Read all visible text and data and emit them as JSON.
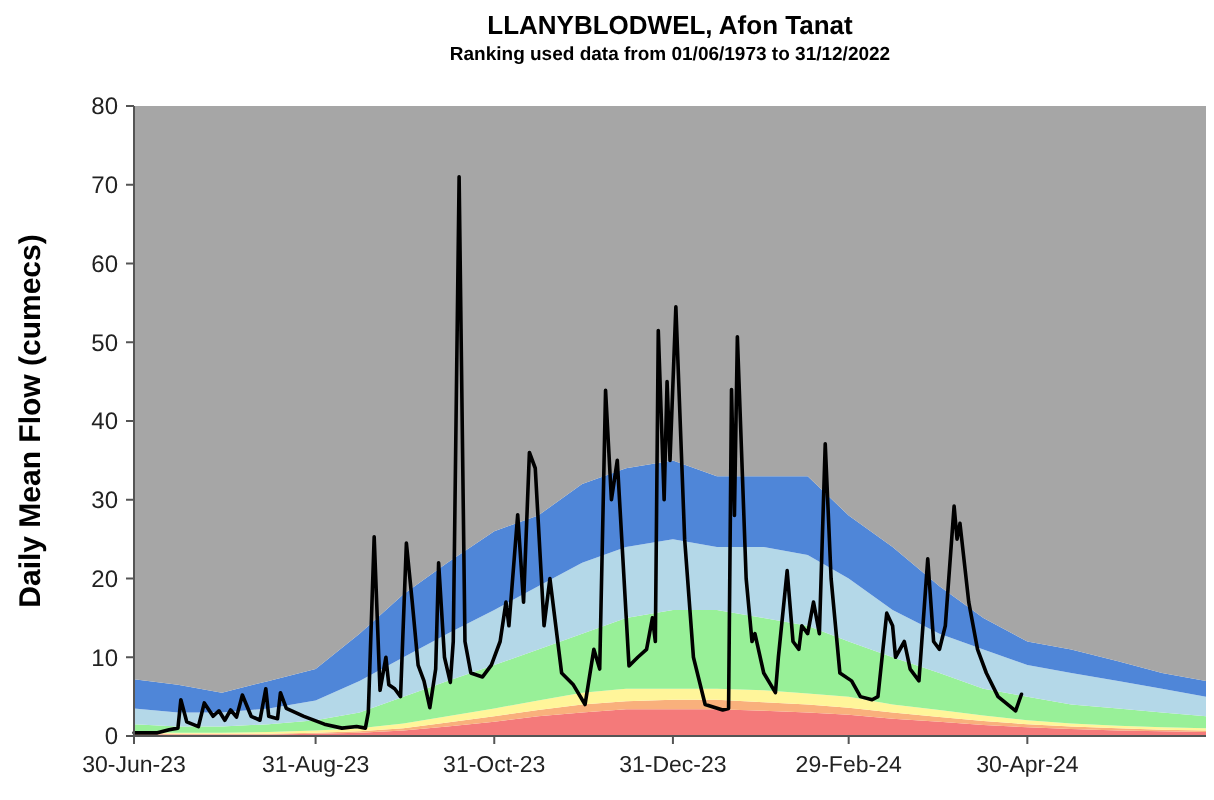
{
  "chart_data": {
    "type": "area",
    "title": "LLANYBLODWEL, Afon Tanat",
    "subtitle": "Ranking used data from 01/06/1973 to 31/12/2022",
    "ylabel": "Daily Mean Flow (cumecs)",
    "stacked": true,
    "grid": false,
    "xlim": [
      "2023-06-30",
      "2024-06-30"
    ],
    "xticks": [
      {
        "value": "2023-06-30",
        "label": "30-Jun-23"
      },
      {
        "value": "2023-08-31",
        "label": "31-Aug-23"
      },
      {
        "value": "2023-10-31",
        "label": "31-Oct-23"
      },
      {
        "value": "2023-12-31",
        "label": "31-Dec-23"
      },
      {
        "value": "2024-02-29",
        "label": "29-Feb-24"
      },
      {
        "value": "2024-04-30",
        "label": "30-Apr-24"
      }
    ],
    "ylim": [
      0,
      80
    ],
    "yticks": [
      0,
      10,
      20,
      30,
      40,
      50,
      60,
      70,
      80
    ],
    "series": [
      {
        "color": "#f47a7a",
        "x": [
          "2023-06-30",
          "2023-07-15",
          "2023-07-30",
          "2023-08-15",
          "2023-08-31",
          "2023-09-15",
          "2023-09-30",
          "2023-10-15",
          "2023-10-31",
          "2023-11-15",
          "2023-11-30",
          "2023-12-15",
          "2023-12-31",
          "2024-01-15",
          "2024-01-31",
          "2024-02-15",
          "2024-02-29",
          "2024-03-15",
          "2024-03-31",
          "2024-04-15",
          "2024-04-30",
          "2024-05-15",
          "2024-05-31",
          "2024-06-15",
          "2024-06-30"
        ],
        "values": [
          0.2,
          0.2,
          0.2,
          0.2,
          0.3,
          0.4,
          0.7,
          1.2,
          1.8,
          2.5,
          3,
          3.4,
          3.4,
          3.4,
          3.2,
          3,
          2.7,
          2.2,
          1.8,
          1.4,
          1.1,
          0.9,
          0.7,
          0.6,
          0.5
        ]
      },
      {
        "color": "#f9b07c",
        "x": [
          "2023-06-30",
          "2023-07-15",
          "2023-07-30",
          "2023-08-15",
          "2023-08-31",
          "2023-09-15",
          "2023-09-30",
          "2023-10-15",
          "2023-10-31",
          "2023-11-15",
          "2023-11-30",
          "2023-12-15",
          "2023-12-31",
          "2024-01-15",
          "2024-01-31",
          "2024-02-15",
          "2024-02-29",
          "2024-03-15",
          "2024-03-31",
          "2024-04-15",
          "2024-04-30",
          "2024-05-15",
          "2024-05-31",
          "2024-06-15",
          "2024-06-30"
        ],
        "values": [
          0.1,
          0.1,
          0.1,
          0.1,
          0.1,
          0.2,
          0.3,
          0.5,
          0.7,
          0.8,
          1,
          1,
          1.2,
          1.2,
          1.1,
          1,
          0.9,
          0.8,
          0.6,
          0.5,
          0.4,
          0.3,
          0.3,
          0.2,
          0.2
        ]
      },
      {
        "color": "#fff59a",
        "x": [
          "2023-06-30",
          "2023-07-15",
          "2023-07-30",
          "2023-08-15",
          "2023-08-31",
          "2023-09-15",
          "2023-09-30",
          "2023-10-15",
          "2023-10-31",
          "2023-11-15",
          "2023-11-30",
          "2023-12-15",
          "2023-12-31",
          "2024-01-15",
          "2024-01-31",
          "2024-02-15",
          "2024-02-29",
          "2024-03-15",
          "2024-03-31",
          "2024-04-15",
          "2024-04-30",
          "2024-05-15",
          "2024-05-31",
          "2024-06-15",
          "2024-06-30"
        ],
        "values": [
          0.2,
          0.1,
          0.1,
          0.2,
          0.3,
          0.4,
          0.6,
          0.8,
          1,
          1.2,
          1.5,
          1.6,
          1.4,
          1.4,
          1.5,
          1.4,
          1.4,
          1,
          0.9,
          0.7,
          0.5,
          0.4,
          0.3,
          0.3,
          0.3
        ]
      },
      {
        "color": "#98f098",
        "x": [
          "2023-06-30",
          "2023-07-15",
          "2023-07-30",
          "2023-08-15",
          "2023-08-31",
          "2023-09-15",
          "2023-09-30",
          "2023-10-15",
          "2023-10-31",
          "2023-11-15",
          "2023-11-30",
          "2023-12-15",
          "2023-12-31",
          "2024-01-15",
          "2024-01-31",
          "2024-02-15",
          "2024-02-29",
          "2024-03-15",
          "2024-03-31",
          "2024-04-15",
          "2024-04-30",
          "2024-05-15",
          "2024-05-31",
          "2024-06-15",
          "2024-06-30"
        ],
        "values": [
          1,
          0.8,
          0.8,
          1,
          1.3,
          2,
          3.4,
          4.5,
          5.5,
          6.5,
          7.5,
          9,
          10,
          10,
          9.2,
          8.6,
          7,
          6,
          4.7,
          3.4,
          3,
          2.4,
          2.2,
          1.9,
          1.5
        ]
      },
      {
        "color": "#b4d8e8",
        "x": [
          "2023-06-30",
          "2023-07-15",
          "2023-07-30",
          "2023-08-15",
          "2023-08-31",
          "2023-09-15",
          "2023-09-30",
          "2023-10-15",
          "2023-10-31",
          "2023-11-15",
          "2023-11-30",
          "2023-12-15",
          "2023-12-31",
          "2024-01-15",
          "2024-01-31",
          "2024-02-15",
          "2024-02-29",
          "2024-03-15",
          "2024-03-31",
          "2024-04-15",
          "2024-04-30",
          "2024-05-15",
          "2024-05-31",
          "2024-06-15",
          "2024-06-30"
        ],
        "values": [
          2,
          1.8,
          1.8,
          2,
          2.5,
          4,
          5,
          6,
          7,
          8,
          9,
          9,
          9,
          8,
          9,
          9,
          8,
          6,
          5,
          5,
          4,
          4,
          3.5,
          3,
          2.5
        ]
      },
      {
        "color": "#4f86d8",
        "x": [
          "2023-06-30",
          "2023-07-15",
          "2023-07-30",
          "2023-08-15",
          "2023-08-31",
          "2023-09-15",
          "2023-09-30",
          "2023-10-15",
          "2023-10-31",
          "2023-11-15",
          "2023-11-30",
          "2023-12-15",
          "2023-12-31",
          "2024-01-15",
          "2024-01-31",
          "2024-02-15",
          "2024-02-29",
          "2024-03-15",
          "2024-03-31",
          "2024-04-15",
          "2024-04-30",
          "2024-05-15",
          "2024-05-31",
          "2024-06-15",
          "2024-06-30"
        ],
        "values": [
          3.7,
          3.5,
          2.5,
          3.5,
          4,
          6,
          8,
          9,
          10,
          9,
          10,
          10,
          10,
          9,
          9,
          10,
          8,
          8,
          6,
          4,
          3,
          3,
          2.5,
          2,
          2
        ]
      },
      {
        "color": "#a6a6a6",
        "x": [
          "2023-06-30",
          "2023-07-15",
          "2023-07-30",
          "2023-08-15",
          "2023-08-31",
          "2023-09-15",
          "2023-09-30",
          "2023-10-15",
          "2023-10-31",
          "2023-11-15",
          "2023-11-30",
          "2023-12-15",
          "2023-12-31",
          "2024-01-15",
          "2024-01-31",
          "2024-02-15",
          "2024-02-29",
          "2024-03-15",
          "2024-03-31",
          "2024-04-15",
          "2024-04-30",
          "2024-05-15",
          "2024-05-31",
          "2024-06-15",
          "2024-06-30"
        ],
        "values": [
          72.8,
          73.5,
          74.5,
          73,
          71.5,
          67,
          62,
          58,
          54,
          52,
          48,
          46,
          45,
          47,
          47,
          47,
          52,
          56,
          61,
          65,
          68,
          69,
          70.5,
          72,
          73
        ]
      },
      {
        "type": "line",
        "color": "#000000",
        "x": [
          "2023-06-30",
          "2023-07-08",
          "2023-07-12",
          "2023-07-15",
          "2023-07-16",
          "2023-07-18",
          "2023-07-22",
          "2023-07-24",
          "2023-07-27",
          "2023-07-29",
          "2023-07-31",
          "2023-08-02",
          "2023-08-04",
          "2023-08-06",
          "2023-08-09",
          "2023-08-12",
          "2023-08-14",
          "2023-08-15",
          "2023-08-18",
          "2023-08-19",
          "2023-08-21",
          "2023-08-27",
          "2023-09-03",
          "2023-09-09",
          "2023-09-14",
          "2023-09-17",
          "2023-09-18",
          "2023-09-20",
          "2023-09-22",
          "2023-09-24",
          "2023-09-25",
          "2023-09-27",
          "2023-09-29",
          "2023-10-01",
          "2023-10-03",
          "2023-10-05",
          "2023-10-07",
          "2023-10-09",
          "2023-10-11",
          "2023-10-12",
          "2023-10-14",
          "2023-10-16",
          "2023-10-17",
          "2023-10-19",
          "2023-10-21",
          "2023-10-23",
          "2023-10-27",
          "2023-10-30",
          "2023-11-02",
          "2023-11-04",
          "2023-11-05",
          "2023-11-08",
          "2023-11-10",
          "2023-11-12",
          "2023-11-14",
          "2023-11-17",
          "2023-11-19",
          "2023-11-23",
          "2023-11-27",
          "2023-12-01",
          "2023-12-04",
          "2023-12-06",
          "2023-12-08",
          "2023-12-10",
          "2023-12-12",
          "2023-12-16",
          "2023-12-19",
          "2023-12-22",
          "2023-12-24",
          "2023-12-25",
          "2023-12-26",
          "2023-12-28",
          "2023-12-29",
          "2023-12-30",
          "2024-01-01",
          "2024-01-04",
          "2024-01-07",
          "2024-01-11",
          "2024-01-17",
          "2024-01-19",
          "2024-01-20",
          "2024-01-21",
          "2024-01-22",
          "2024-01-25",
          "2024-01-27",
          "2024-01-28",
          "2024-01-31",
          "2024-02-04",
          "2024-02-05",
          "2024-02-08",
          "2024-02-10",
          "2024-02-12",
          "2024-02-13",
          "2024-02-15",
          "2024-02-17",
          "2024-02-19",
          "2024-02-21",
          "2024-02-23",
          "2024-02-26",
          "2024-03-01",
          "2024-03-04",
          "2024-03-08",
          "2024-03-10",
          "2024-03-13",
          "2024-03-15",
          "2024-03-16",
          "2024-03-19",
          "2024-03-21",
          "2024-03-24",
          "2024-03-27",
          "2024-03-29",
          "2024-03-31",
          "2024-04-02",
          "2024-04-05",
          "2024-04-06",
          "2024-04-07",
          "2024-04-10",
          "2024-04-13",
          "2024-04-16",
          "2024-04-20",
          "2024-04-26",
          "2024-04-28"
        ],
        "values": [
          0.4,
          0.4,
          0.8,
          1,
          4.6,
          1.8,
          1.2,
          4.2,
          2.5,
          3.2,
          2,
          3.3,
          2.4,
          5.2,
          2.5,
          2,
          6,
          2.5,
          2.2,
          5.5,
          3.5,
          2.5,
          1.5,
          1,
          1.2,
          1,
          3,
          25.3,
          5.8,
          10,
          6.5,
          6,
          5,
          24.5,
          17,
          9,
          7,
          3.6,
          8.5,
          22,
          10,
          6.8,
          12,
          71,
          12,
          8,
          7.5,
          9,
          12,
          17,
          14,
          28.1,
          17,
          36,
          34,
          14,
          20,
          8,
          6.5,
          4,
          11,
          8.5,
          43.9,
          30,
          35,
          8.9,
          10,
          11,
          15,
          12,
          51.5,
          30,
          45,
          35,
          54.5,
          25,
          10,
          4,
          3.3,
          3.5,
          44,
          28,
          50.7,
          20,
          12,
          13,
          8,
          5.5,
          10,
          21,
          12,
          11,
          14,
          13,
          17,
          13,
          37.1,
          20,
          8,
          7,
          5,
          4.6,
          5,
          15.6,
          14,
          10,
          12,
          8.5,
          7,
          22.5,
          12,
          11,
          14,
          29.2,
          25,
          27,
          17,
          11,
          8,
          5,
          3.2,
          5.3
        ]
      }
    ]
  }
}
